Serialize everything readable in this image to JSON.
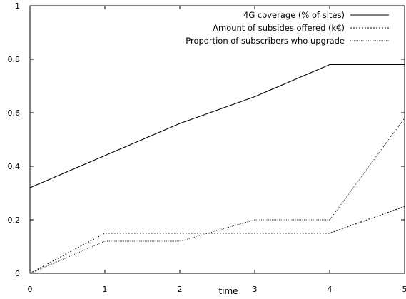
{
  "chart_data": {
    "type": "line",
    "title": "",
    "xlabel": "time",
    "ylabel": "",
    "xlim": [
      0,
      5
    ],
    "ylim": [
      0,
      1
    ],
    "x": [
      0,
      1,
      2,
      3,
      4,
      5
    ],
    "xticks": [
      "0",
      "1",
      "2",
      "3",
      "4",
      "5"
    ],
    "yticks": [
      "0",
      "0.2",
      "0.4",
      "0.6",
      "0.8",
      "1"
    ],
    "grid": false,
    "legend_position": "top-right",
    "series": [
      {
        "name": "4G coverage (% of sites)",
        "style": "solid",
        "color": "#000000",
        "values": [
          0.32,
          0.44,
          0.56,
          0.66,
          0.78,
          0.78
        ]
      },
      {
        "name": "Amount of subsides offered (k€)",
        "style": "dotted",
        "color": "#000000",
        "values": [
          0.0,
          0.15,
          0.15,
          0.15,
          0.15,
          0.25
        ]
      },
      {
        "name": "Proportion of subscribers who upgrade",
        "style": "fine-dotted",
        "color": "#000000",
        "values": [
          0.0,
          0.12,
          0.12,
          0.2,
          0.2,
          0.58
        ]
      }
    ]
  }
}
